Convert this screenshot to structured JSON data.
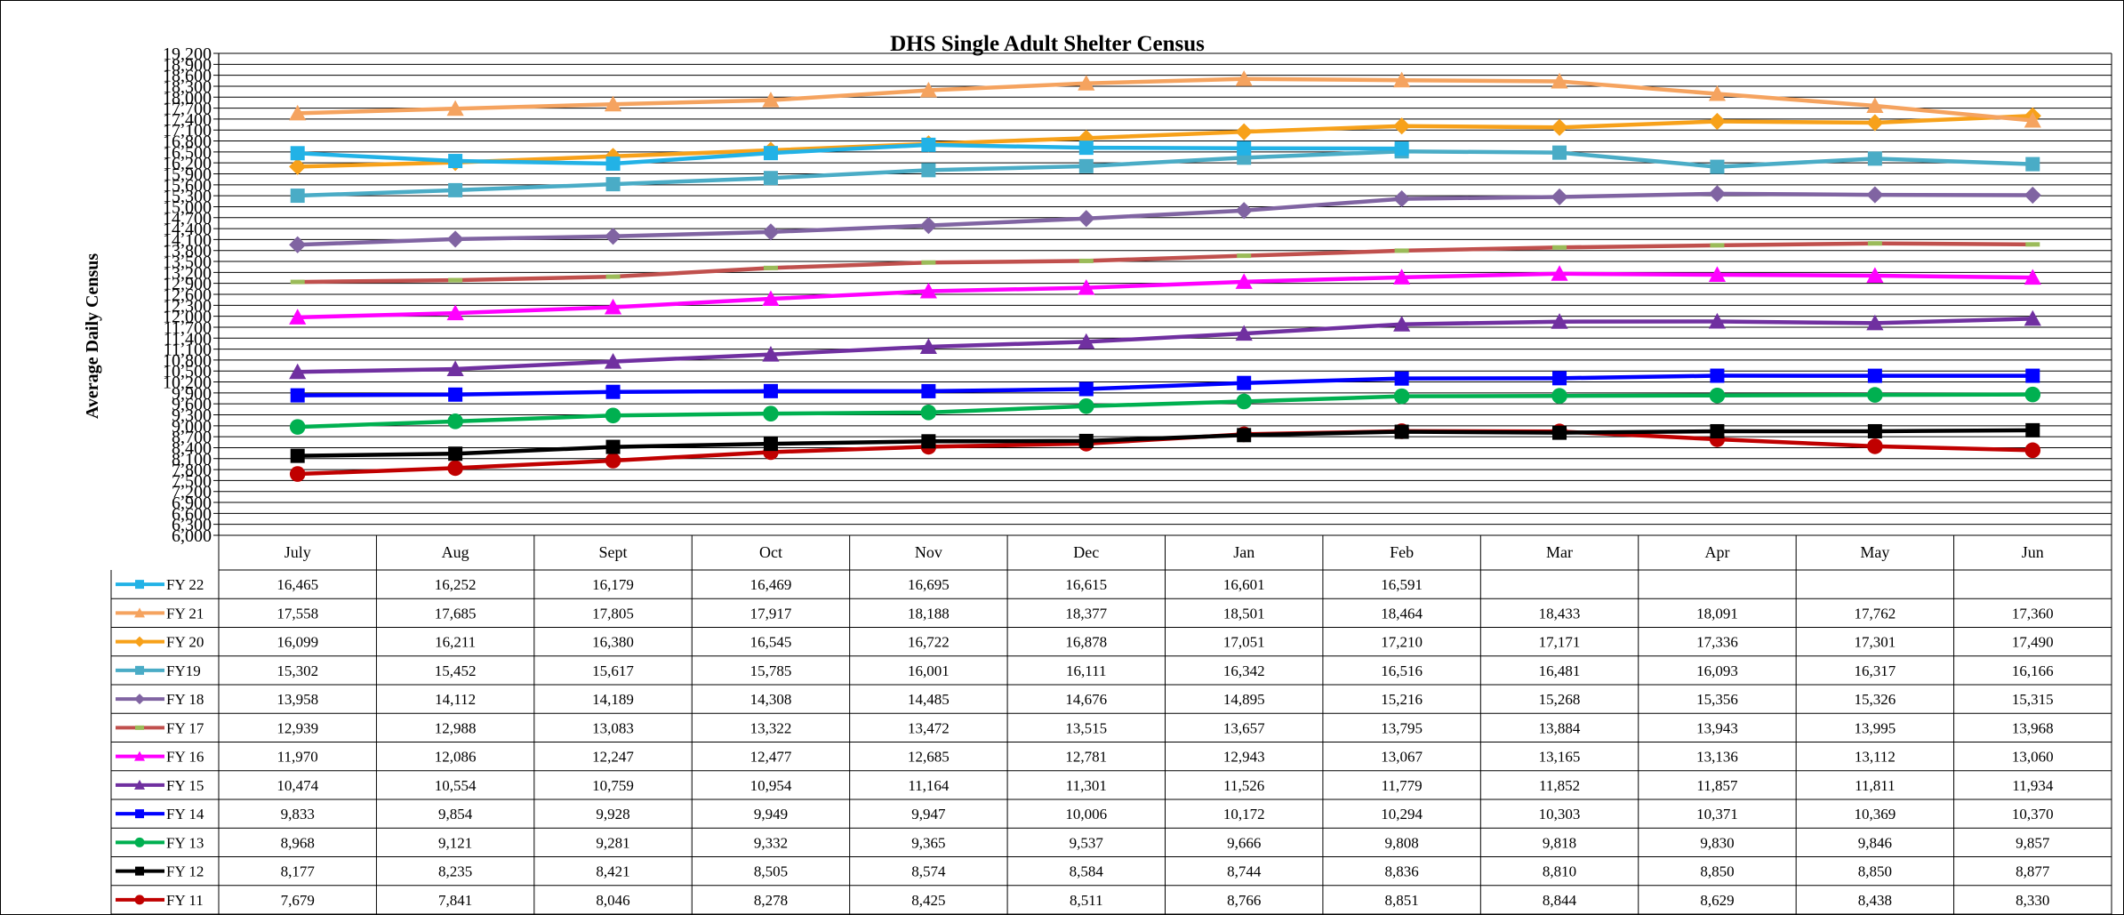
{
  "chart_data": {
    "type": "line",
    "title": "DHS Single Adult Shelter Census",
    "xlabel": "",
    "ylabel": "Average Daily Census",
    "ylim": [
      6000,
      19200
    ],
    "y_tick_labels": [
      "6,000",
      "6,300",
      "6,600",
      "6,900",
      "7,200",
      "7,500",
      "7,800",
      "8,100",
      "8,400",
      "8,700",
      "9,000",
      "9,300",
      "9,600",
      "9,900",
      "10,200",
      "10,500",
      "10,800",
      "11,100",
      "11,400",
      "11,700",
      "12,000",
      "12,300",
      "12,600",
      "12,900",
      "13,200",
      "13,500",
      "13,800",
      "14,100",
      "14,400",
      "14,700",
      "15,000",
      "15,300",
      "15,600",
      "15,900",
      "16,200",
      "16,500",
      "16,800",
      "17,100",
      "17,400",
      "17,700",
      "18,000",
      "18,300",
      "18,600",
      "18,900",
      "19,200"
    ],
    "grid": true,
    "legend": "data-table",
    "categories": [
      "July",
      "Aug",
      "Sept",
      "Oct",
      "Nov",
      "Dec",
      "Jan",
      "Feb",
      "Mar",
      "Apr",
      "May",
      "Jun"
    ],
    "series": [
      {
        "name": "FY 22",
        "color": "#22b2e6",
        "marker": "square",
        "values": [
          16465,
          16252,
          16179,
          16469,
          16695,
          16615,
          16601,
          16591,
          null,
          null,
          null,
          null
        ],
        "labels": [
          "16,465",
          "16,252",
          "16,179",
          "16,469",
          "16,695",
          "16,615",
          "16,601",
          "16,591",
          "",
          "",
          "",
          ""
        ]
      },
      {
        "name": "FY 21",
        "color": "#f5a35f",
        "marker": "triangle",
        "values": [
          17558,
          17685,
          17805,
          17917,
          18188,
          18377,
          18501,
          18464,
          18433,
          18091,
          17762,
          17360
        ],
        "labels": [
          "17,558",
          "17,685",
          "17,805",
          "17,917",
          "18,188",
          "18,377",
          "18,501",
          "18,464",
          "18,433",
          "18,091",
          "17,762",
          "17,360"
        ]
      },
      {
        "name": "FY 20",
        "color": "#f7a11a",
        "marker": "diamond",
        "values": [
          16099,
          16211,
          16380,
          16545,
          16722,
          16878,
          17051,
          17210,
          17171,
          17336,
          17301,
          17490
        ],
        "labels": [
          "16,099",
          "16,211",
          "16,380",
          "16,545",
          "16,722",
          "16,878",
          "17,051",
          "17,210",
          "17,171",
          "17,336",
          "17,301",
          "17,490"
        ]
      },
      {
        "name": "FY19",
        "color": "#4aacc6",
        "marker": "square",
        "values": [
          15302,
          15452,
          15617,
          15785,
          16001,
          16111,
          16342,
          16516,
          16481,
          16093,
          16317,
          16166
        ],
        "labels": [
          "15,302",
          "15,452",
          "15,617",
          "15,785",
          "16,001",
          "16,111",
          "16,342",
          "16,516",
          "16,481",
          "16,093",
          "16,317",
          "16,166"
        ]
      },
      {
        "name": "FY 18",
        "color": "#8064a2",
        "marker": "diamond",
        "values": [
          13958,
          14112,
          14189,
          14308,
          14485,
          14676,
          14895,
          15216,
          15268,
          15356,
          15326,
          15315
        ],
        "labels": [
          "13,958",
          "14,112",
          "14,189",
          "14,308",
          "14,485",
          "14,676",
          "14,895",
          "15,216",
          "15,268",
          "15,356",
          "15,326",
          "15,315"
        ]
      },
      {
        "name": "FY 17",
        "color": "#c0504d",
        "marker": "dash",
        "values": [
          12939,
          12988,
          13083,
          13322,
          13472,
          13515,
          13657,
          13795,
          13884,
          13943,
          13995,
          13968
        ],
        "labels": [
          "12,939",
          "12,988",
          "13,083",
          "13,322",
          "13,472",
          "13,515",
          "13,657",
          "13,795",
          "13,884",
          "13,943",
          "13,995",
          "13,968"
        ]
      },
      {
        "name": "FY 16",
        "color": "#ff00ff",
        "marker": "triangle",
        "values": [
          11970,
          12086,
          12247,
          12477,
          12685,
          12781,
          12943,
          13067,
          13165,
          13136,
          13112,
          13060
        ],
        "labels": [
          "11,970",
          "12,086",
          "12,247",
          "12,477",
          "12,685",
          "12,781",
          "12,943",
          "13,067",
          "13,165",
          "13,136",
          "13,112",
          "13,060"
        ]
      },
      {
        "name": "FY 15",
        "color": "#7030a0",
        "marker": "triangle",
        "values": [
          10474,
          10554,
          10759,
          10954,
          11164,
          11301,
          11526,
          11779,
          11852,
          11857,
          11811,
          11934
        ],
        "labels": [
          "10,474",
          "10,554",
          "10,759",
          "10,954",
          "11,164",
          "11,301",
          "11,526",
          "11,779",
          "11,852",
          "11,857",
          "11,811",
          "11,934"
        ]
      },
      {
        "name": "FY 14",
        "color": "#0000ff",
        "marker": "square",
        "values": [
          9833,
          9854,
          9928,
          9949,
          9947,
          10006,
          10172,
          10294,
          10303,
          10371,
          10369,
          10370
        ],
        "labels": [
          "9,833",
          "9,854",
          "9,928",
          "9,949",
          "9,947",
          "10,006",
          "10,172",
          "10,294",
          "10,303",
          "10,371",
          "10,369",
          "10,370"
        ]
      },
      {
        "name": "FY 13",
        "color": "#00b050",
        "marker": "circle",
        "values": [
          8968,
          9121,
          9281,
          9332,
          9365,
          9537,
          9666,
          9808,
          9818,
          9830,
          9846,
          9857
        ],
        "labels": [
          "8,968",
          "9,121",
          "9,281",
          "9,332",
          "9,365",
          "9,537",
          "9,666",
          "9,808",
          "9,818",
          "9,830",
          "9,846",
          "9,857"
        ]
      },
      {
        "name": "FY 12",
        "color": "#000000",
        "marker": "square",
        "values": [
          8177,
          8235,
          8421,
          8505,
          8574,
          8584,
          8744,
          8836,
          8810,
          8850,
          8850,
          8877
        ],
        "labels": [
          "8,177",
          "8,235",
          "8,421",
          "8,505",
          "8,574",
          "8,584",
          "8,744",
          "8,836",
          "8,810",
          "8,850",
          "8,850",
          "8,877"
        ]
      },
      {
        "name": "FY 11",
        "color": "#c00000",
        "marker": "circle",
        "values": [
          7679,
          7841,
          8046,
          8278,
          8425,
          8511,
          8766,
          8851,
          8844,
          8629,
          8438,
          8330
        ],
        "labels": [
          "7,679",
          "7,841",
          "8,046",
          "8,278",
          "8,425",
          "8,511",
          "8,766",
          "8,851",
          "8,844",
          "8,629",
          "8,438",
          "8,330"
        ]
      }
    ]
  }
}
